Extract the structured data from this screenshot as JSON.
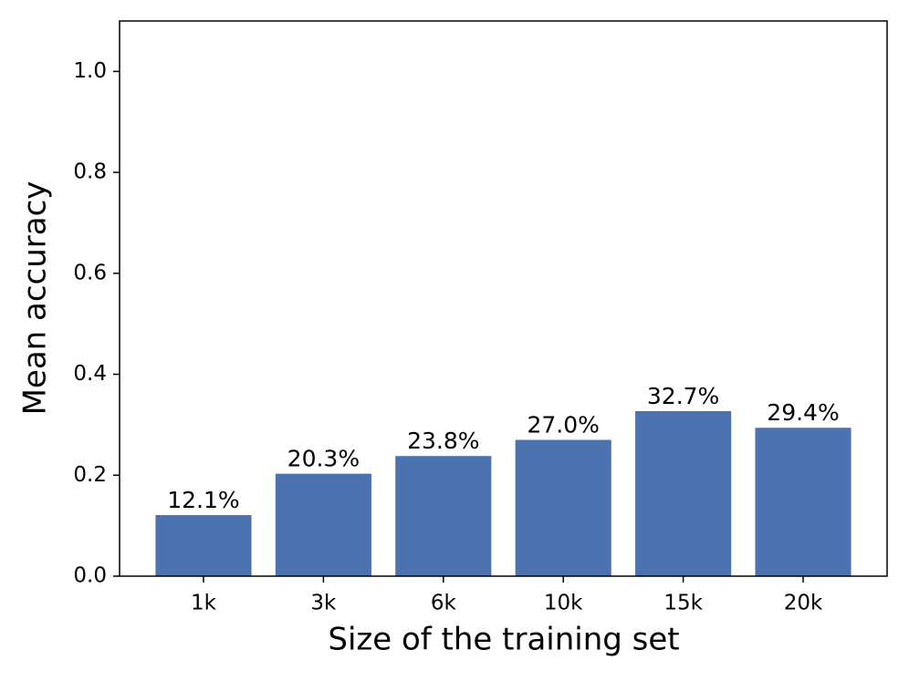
{
  "chart_data": {
    "type": "bar",
    "x_label": "Size of the training set",
    "y_label": "Mean accuracy",
    "categories": [
      "1k",
      "3k",
      "6k",
      "10k",
      "15k",
      "20k"
    ],
    "values": [
      0.121,
      0.203,
      0.238,
      0.27,
      0.327,
      0.294
    ],
    "value_labels": [
      "12.1%",
      "20.3%",
      "23.8%",
      "27.0%",
      "32.7%",
      "29.4%"
    ],
    "color": "#4c72b0",
    "ylim": [
      0,
      1.1
    ],
    "yticks": [
      {
        "value": 0,
        "label": "0.0"
      },
      0.2,
      0.4,
      0.6,
      0.8,
      {
        "value": 1,
        "label": "1.0"
      }
    ],
    "grid": false
  }
}
